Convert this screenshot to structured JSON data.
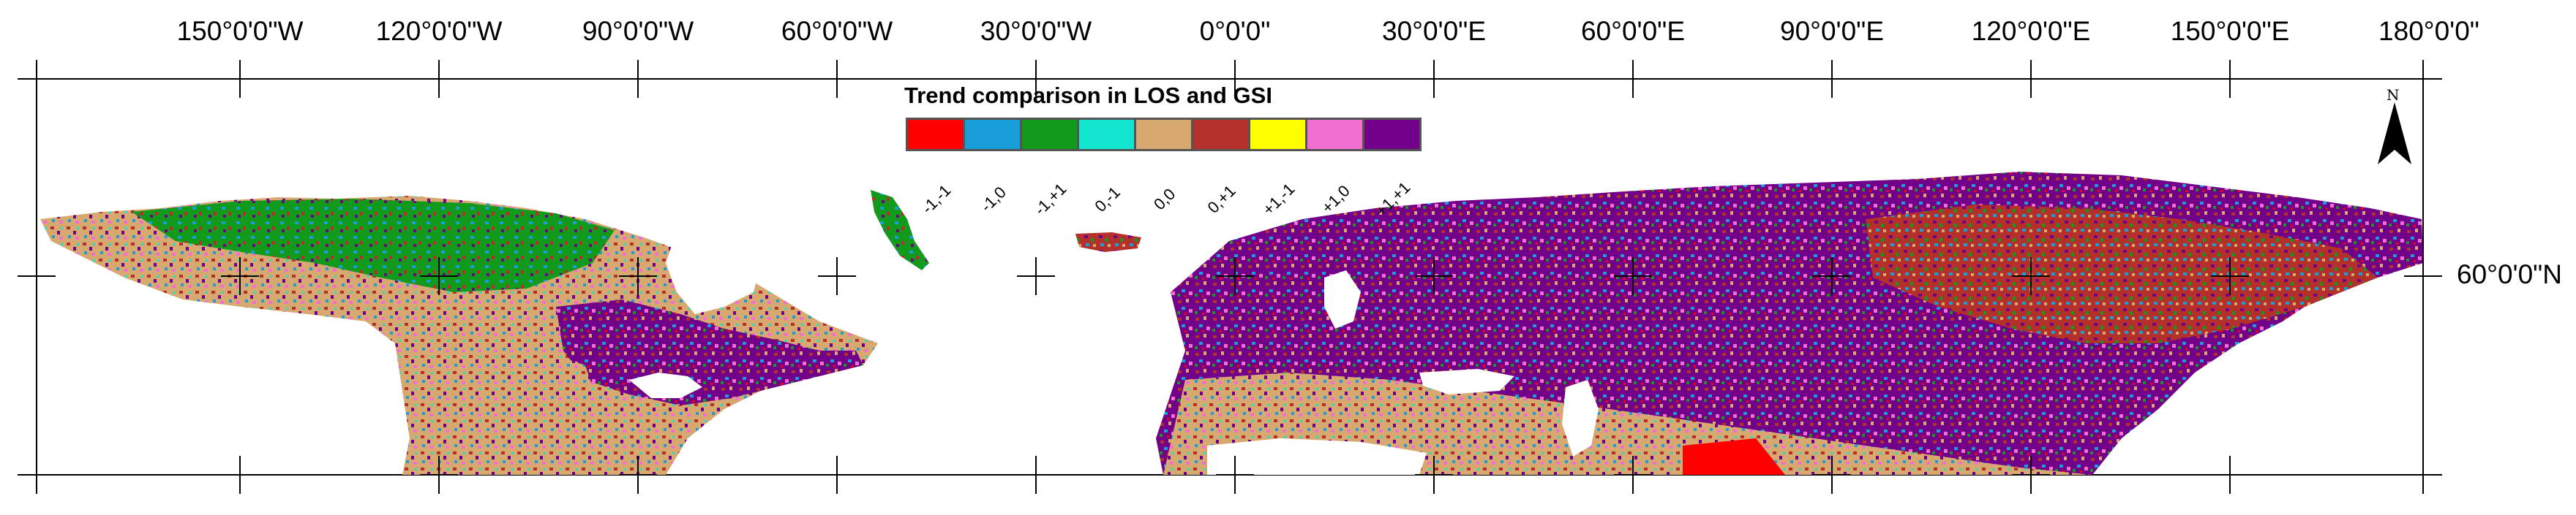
{
  "map": {
    "longitude_labels": [
      "150°0'0\"W",
      "120°0'0\"W",
      "90°0'0\"W",
      "60°0'0\"W",
      "30°0'0\"W",
      "0°0'0\"",
      "30°0'0\"E",
      "60°0'0\"E",
      "90°0'0\"E",
      "120°0'0\"E",
      "150°0'0\"E",
      "180°0'0\""
    ],
    "latitude_labels": [
      "60°0'0\"N"
    ],
    "north_arrow_label": "N"
  },
  "legend": {
    "title": "Trend comparison in LOS and GSI",
    "classes": [
      {
        "label": "-1,-1",
        "color": "#ff0000"
      },
      {
        "label": "-1,0",
        "color": "#1a9ed9"
      },
      {
        "label": "-1,+1",
        "color": "#119a1b"
      },
      {
        "label": "0,-1",
        "color": "#12e6d0"
      },
      {
        "label": "0,0",
        "color": "#d8a871"
      },
      {
        "label": "0,+1",
        "color": "#b4302a"
      },
      {
        "label": "+1,-1",
        "color": "#ffff00"
      },
      {
        "label": "+1,0",
        "color": "#f16fd0"
      },
      {
        "label": "+1,+1",
        "color": "#730088"
      }
    ]
  }
}
